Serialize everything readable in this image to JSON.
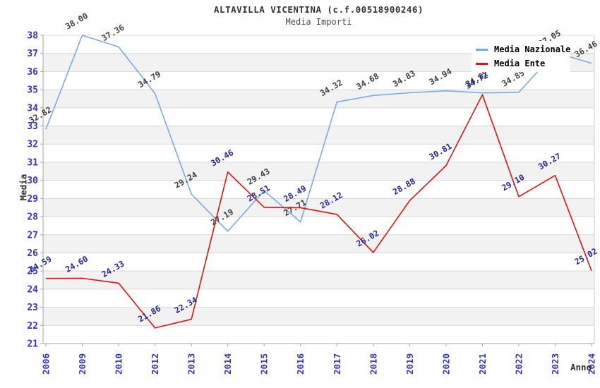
{
  "title": "ALTAVILLA VICENTINA (c.f.00518900246)",
  "subtitle": "Media Importi",
  "axes": {
    "x_label": "Anno",
    "y_label": "Media",
    "y_ticks": [
      21,
      22,
      23,
      24,
      25,
      26,
      27,
      28,
      29,
      30,
      31,
      32,
      33,
      34,
      35,
      36,
      37,
      38
    ],
    "tick_color": "#3232cd"
  },
  "legend": {
    "items": [
      {
        "label": "Media Nazionale",
        "color": "#7aabe0"
      },
      {
        "label": "Media Ente",
        "color": "#e01212"
      }
    ]
  },
  "colors": {
    "band": "#f2f2f2",
    "grid": "#d9d9d9",
    "axis": "#a6a6a6",
    "plot_border": "#cccccc"
  },
  "chart_data": {
    "type": "line",
    "title": "ALTAVILLA VICENTINA (c.f.00518900246)",
    "subtitle": "Media Importi",
    "xlabel": "Anno",
    "ylabel": "Media",
    "ylim": [
      21,
      38
    ],
    "grid": "horizontal-bands",
    "legend_position": "top-right-inside",
    "categories": [
      "2006",
      "2009",
      "2010",
      "2012",
      "2013",
      "2014",
      "2015",
      "2016",
      "2017",
      "2018",
      "2019",
      "2020",
      "2021",
      "2022",
      "2023",
      "2024"
    ],
    "series": [
      {
        "name": "Media Nazionale",
        "color": "#7aabe0",
        "label_color": "#3f3f3f",
        "values": [
          32.82,
          38.0,
          37.36,
          34.79,
          29.24,
          27.19,
          29.43,
          27.71,
          34.32,
          34.68,
          34.83,
          34.94,
          34.82,
          34.85,
          37.05,
          36.46
        ]
      },
      {
        "name": "Media Ente",
        "color": "#e01212",
        "label_color": "#252596",
        "values": [
          24.59,
          24.6,
          24.33,
          21.86,
          22.34,
          30.46,
          28.51,
          28.49,
          28.12,
          26.02,
          28.88,
          30.81,
          34.72,
          29.1,
          30.27,
          25.02
        ]
      }
    ]
  }
}
